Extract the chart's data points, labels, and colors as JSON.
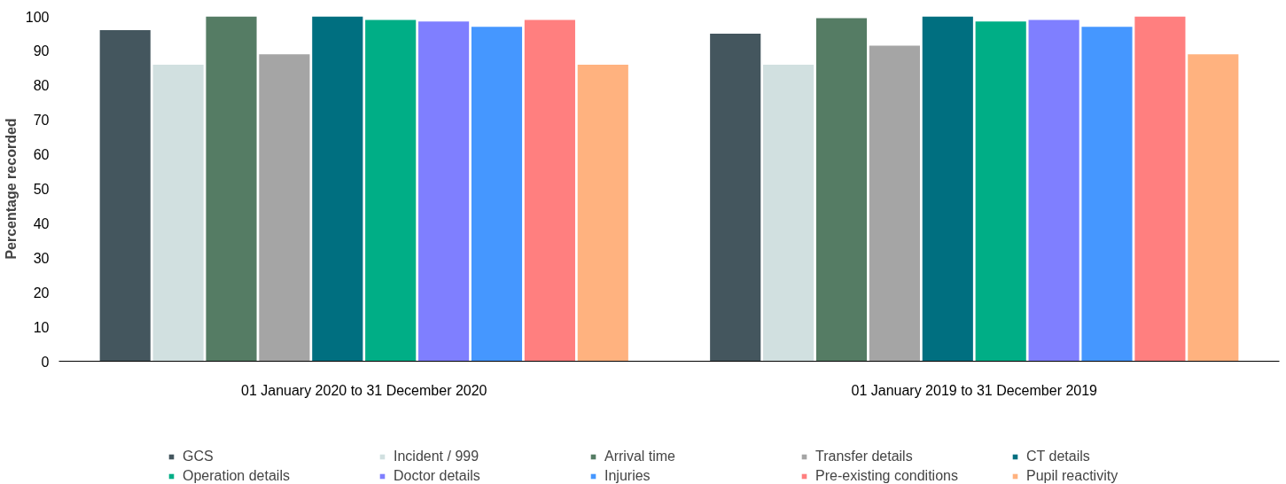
{
  "chart_data": {
    "type": "bar",
    "ylabel": "Percentage recorded",
    "categories": [
      "01 January 2020 to 31 December 2020",
      "01 January 2019 to 31 December 2019"
    ],
    "ylim": [
      0,
      100
    ],
    "yticks": [
      0,
      10,
      20,
      30,
      40,
      50,
      60,
      70,
      80,
      90,
      100
    ],
    "grid": false,
    "legend": "bottom",
    "series": [
      {
        "name": "GCS",
        "color": "#44565e",
        "values": [
          96,
          95
        ]
      },
      {
        "name": "Incident / 999",
        "color": "#d1e0e0",
        "values": [
          86,
          86
        ]
      },
      {
        "name": "Arrival time",
        "color": "#557c64",
        "values": [
          100,
          99.5
        ]
      },
      {
        "name": "Transfer details",
        "color": "#a5a5a5",
        "values": [
          89,
          91.5
        ]
      },
      {
        "name": "CT details",
        "color": "#006f80",
        "values": [
          100,
          100
        ]
      },
      {
        "name": "Operation details",
        "color": "#00ae86",
        "values": [
          99,
          98.5
        ]
      },
      {
        "name": "Doctor details",
        "color": "#7f7fff",
        "values": [
          98.5,
          99
        ]
      },
      {
        "name": "Injuries",
        "color": "#4597ff",
        "values": [
          97,
          97
        ]
      },
      {
        "name": "Pre-existing conditions",
        "color": "#ff7f7f",
        "values": [
          99,
          100
        ]
      },
      {
        "name": "Pupil reactivity",
        "color": "#ffb27f",
        "values": [
          86,
          89
        ]
      }
    ]
  }
}
